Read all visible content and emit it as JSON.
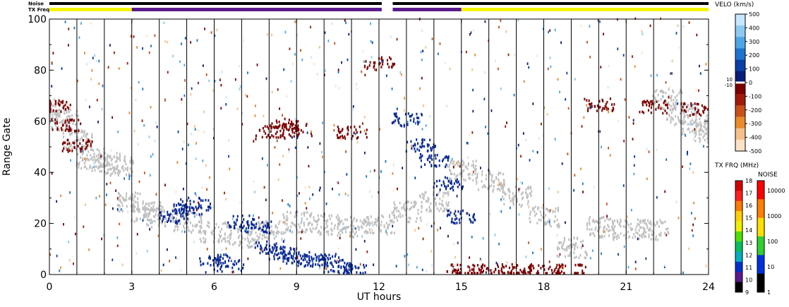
{
  "top_bars": {
    "noise_label": "Noise",
    "txfreq_label": "TX Freq",
    "noise_color": "#000000",
    "txfreq_segments": [
      {
        "from": 0,
        "to": 3,
        "color": "#f4f400"
      },
      {
        "from": 3,
        "to": 12.1,
        "color": "#5a1a8c"
      },
      {
        "from": 12.5,
        "to": 15,
        "color": "#5a1a8c"
      },
      {
        "from": 15,
        "to": 24,
        "color": "#f4f400"
      }
    ],
    "gap_hours": [
      12.1,
      12.5
    ]
  },
  "chart_data": {
    "type": "heatmap",
    "xlabel": "UT hours",
    "ylabel": "Range Gate",
    "xlim": [
      0,
      24
    ],
    "ylim": [
      0,
      100
    ],
    "xticks": [
      "0",
      "3",
      "6",
      "9",
      "12",
      "15",
      "18",
      "21",
      "24"
    ],
    "yticks": [
      "0",
      "20",
      "40",
      "60",
      "80",
      "100"
    ],
    "hour_markers": [
      1,
      2,
      3,
      4,
      5,
      6,
      7,
      8,
      9,
      10,
      11,
      12,
      13,
      14,
      15,
      16,
      17,
      18,
      19,
      20,
      21,
      22,
      23
    ],
    "velocity_scale": {
      "title": "VELO (km/s)",
      "ticks": [
        "500",
        "400",
        "300",
        "200",
        "100",
        "0",
        "-100",
        "-200",
        "-300",
        "-400",
        "-500"
      ],
      "near_zero_labels": [
        "10",
        "-10"
      ],
      "colors": [
        "#c8e6ff",
        "#8ccaf2",
        "#4ea6e6",
        "#1d74cf",
        "#0a3ea8",
        "#081c78",
        "#7a0000",
        "#a01a0a",
        "#c8501a",
        "#ea8a2a",
        "#f6c08a",
        "#fde2c8"
      ]
    },
    "freq_scale": {
      "title": "TX FRQ (MHz)",
      "ticks": [
        "18",
        "17",
        "16",
        "15",
        "14",
        "13",
        "12",
        "11",
        "10",
        "9"
      ],
      "colors": [
        "#d40000",
        "#ff2020",
        "#ff7a00",
        "#ffd000",
        "#f0f000",
        "#50e000",
        "#00c060",
        "#00b0c0",
        "#0030d0",
        "#5a1a8c",
        "#000000"
      ]
    },
    "noise_scale": {
      "title": "NOISE",
      "ticks": [
        "10000",
        "1000",
        "100",
        "10",
        "1"
      ],
      "colors": [
        "#ff0000",
        "#ff8000",
        "#ffe000",
        "#30d030",
        "#0030e0",
        "#000000"
      ]
    },
    "series": [
      {
        "kind": "ground_scatter",
        "color": "#c0c0c0",
        "points": [
          [
            0,
            64
          ],
          [
            0.5,
            60
          ],
          [
            1,
            52
          ],
          [
            1.5,
            45
          ],
          [
            2,
            43
          ],
          [
            2.5,
            42
          ],
          [
            3,
            28
          ],
          [
            3.5,
            24
          ],
          [
            4,
            22
          ],
          [
            5,
            20
          ],
          [
            6,
            16
          ],
          [
            7,
            14
          ],
          [
            8,
            17
          ],
          [
            9,
            20
          ],
          [
            10,
            19
          ],
          [
            11,
            18
          ],
          [
            12,
            19
          ],
          [
            13,
            24
          ],
          [
            14,
            28
          ],
          [
            15,
            40
          ],
          [
            16,
            36
          ],
          [
            17,
            30
          ],
          [
            18,
            22
          ],
          [
            19,
            10
          ],
          [
            20,
            18
          ],
          [
            21,
            17
          ],
          [
            22,
            17
          ],
          [
            22.5,
            68
          ],
          [
            23,
            62
          ],
          [
            23.5,
            58
          ],
          [
            24,
            55
          ]
        ]
      },
      {
        "kind": "velocity_positive",
        "color": "#0a2a96",
        "points": [
          [
            4.5,
            22
          ],
          [
            5,
            25
          ],
          [
            5.3,
            27
          ],
          [
            6,
            5
          ],
          [
            6.5,
            3
          ],
          [
            7,
            20
          ],
          [
            7.5,
            18
          ],
          [
            8,
            10
          ],
          [
            8.5,
            8
          ],
          [
            9,
            6
          ],
          [
            9.5,
            5
          ],
          [
            10,
            5
          ],
          [
            10.5,
            3
          ],
          [
            11,
            1
          ],
          [
            13,
            60
          ],
          [
            13.5,
            50
          ],
          [
            14,
            44
          ],
          [
            14.5,
            35
          ],
          [
            15,
            22
          ]
        ]
      },
      {
        "kind": "velocity_negative",
        "color": "#7a0000",
        "points": [
          [
            0.2,
            65
          ],
          [
            0.6,
            58
          ],
          [
            1,
            50
          ],
          [
            8,
            55
          ],
          [
            8.5,
            58
          ],
          [
            9,
            56
          ],
          [
            11,
            55
          ],
          [
            12,
            82
          ],
          [
            15,
            1
          ],
          [
            16,
            1
          ],
          [
            17,
            1
          ],
          [
            18,
            1
          ],
          [
            19,
            1
          ],
          [
            20,
            66
          ],
          [
            22,
            65
          ],
          [
            23.5,
            64
          ]
        ]
      }
    ]
  }
}
